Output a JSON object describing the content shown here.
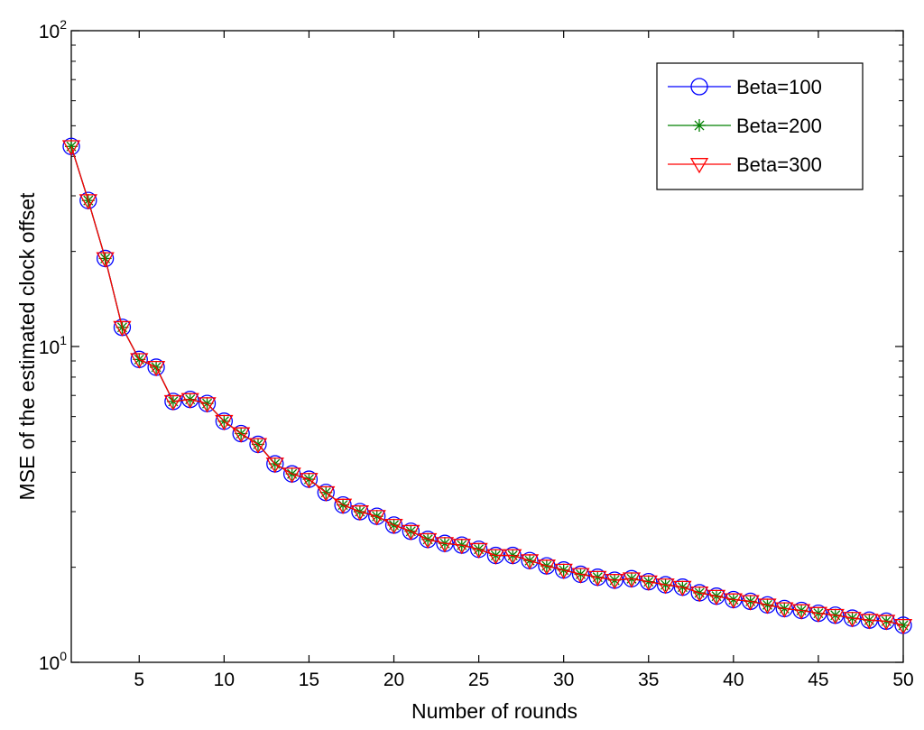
{
  "chart_data": {
    "type": "line",
    "title": "",
    "xlabel": "Number of rounds",
    "ylabel": "MSE of the estimated clock offset",
    "xlim": [
      1,
      50
    ],
    "ylim": [
      1,
      100
    ],
    "yscale": "log",
    "grid": false,
    "legend_position": "top-right",
    "x_ticks": [
      5,
      10,
      15,
      20,
      25,
      30,
      35,
      40,
      45,
      50
    ],
    "x_tick_labels": [
      "5",
      "10",
      "15",
      "20",
      "25",
      "30",
      "35",
      "40",
      "45",
      "50"
    ],
    "y_ticks": [
      {
        "value": 1,
        "base": "10",
        "exp": "0"
      },
      {
        "value": 10,
        "base": "10",
        "exp": "1"
      },
      {
        "value": 100,
        "base": "10",
        "exp": "2"
      }
    ],
    "x": [
      1,
      2,
      3,
      4,
      5,
      6,
      7,
      8,
      9,
      10,
      11,
      12,
      13,
      14,
      15,
      16,
      17,
      18,
      19,
      20,
      21,
      22,
      23,
      24,
      25,
      26,
      27,
      28,
      29,
      30,
      31,
      32,
      33,
      34,
      35,
      36,
      37,
      38,
      39,
      40,
      41,
      42,
      43,
      44,
      45,
      46,
      47,
      48,
      49,
      50
    ],
    "series": [
      {
        "name": "Beta=100",
        "color": "#0000ff",
        "marker": "circle",
        "values": [
          43,
          29,
          19,
          11.5,
          9.1,
          8.6,
          6.7,
          6.8,
          6.6,
          5.8,
          5.3,
          4.9,
          4.25,
          3.95,
          3.8,
          3.45,
          3.15,
          3.0,
          2.9,
          2.72,
          2.6,
          2.45,
          2.38,
          2.35,
          2.28,
          2.18,
          2.18,
          2.1,
          2.02,
          1.96,
          1.9,
          1.86,
          1.82,
          1.84,
          1.8,
          1.76,
          1.73,
          1.66,
          1.62,
          1.58,
          1.56,
          1.52,
          1.48,
          1.46,
          1.43,
          1.41,
          1.38,
          1.36,
          1.35,
          1.31
        ]
      },
      {
        "name": "Beta=200",
        "color": "#008000",
        "marker": "asterisk",
        "values": [
          43,
          29,
          19,
          11.5,
          9.1,
          8.6,
          6.7,
          6.8,
          6.6,
          5.8,
          5.3,
          4.9,
          4.25,
          3.95,
          3.8,
          3.45,
          3.15,
          3.0,
          2.9,
          2.72,
          2.6,
          2.45,
          2.38,
          2.35,
          2.28,
          2.18,
          2.18,
          2.1,
          2.02,
          1.96,
          1.9,
          1.86,
          1.82,
          1.84,
          1.8,
          1.76,
          1.73,
          1.66,
          1.62,
          1.58,
          1.56,
          1.52,
          1.48,
          1.46,
          1.43,
          1.41,
          1.38,
          1.36,
          1.35,
          1.31
        ]
      },
      {
        "name": "Beta=300",
        "color": "#ff0000",
        "marker": "triangle-down",
        "values": [
          43,
          29,
          19,
          11.5,
          9.1,
          8.6,
          6.7,
          6.8,
          6.6,
          5.8,
          5.3,
          4.9,
          4.25,
          3.95,
          3.8,
          3.45,
          3.15,
          3.0,
          2.9,
          2.72,
          2.6,
          2.45,
          2.38,
          2.35,
          2.28,
          2.18,
          2.18,
          2.1,
          2.02,
          1.96,
          1.9,
          1.86,
          1.82,
          1.84,
          1.8,
          1.76,
          1.73,
          1.66,
          1.62,
          1.58,
          1.56,
          1.52,
          1.48,
          1.46,
          1.43,
          1.41,
          1.38,
          1.36,
          1.35,
          1.31
        ]
      }
    ]
  }
}
